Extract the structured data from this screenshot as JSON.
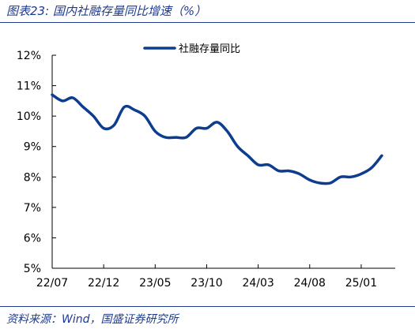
{
  "figure": {
    "title": "图表23:  国内社融存量同比增速（%）",
    "source": "资料来源：Wind，国盛证券研究所"
  },
  "colors": {
    "accent": "#1f3a8f",
    "series": "#0d3d8f"
  },
  "chart_data": {
    "type": "line",
    "title": "",
    "xlabel": "",
    "ylabel": "",
    "ylim": [
      5,
      12
    ],
    "grid": false,
    "legend_position": "top-center",
    "y_ticks": [
      "5%",
      "6%",
      "7%",
      "8%",
      "9%",
      "10%",
      "11%",
      "12%"
    ],
    "x_ticks": [
      {
        "label": "22/07",
        "x": "2022-07"
      },
      {
        "label": "22/12",
        "x": "2022-12"
      },
      {
        "label": "23/05",
        "x": "2023-05"
      },
      {
        "label": "23/10",
        "x": "2023-10"
      },
      {
        "label": "24/03",
        "x": "2024-03"
      },
      {
        "label": "24/08",
        "x": "2024-08"
      },
      {
        "label": "25/01",
        "x": "2025-01"
      }
    ],
    "x": [
      "2022-07",
      "2022-08",
      "2022-09",
      "2022-10",
      "2022-11",
      "2022-12",
      "2023-01",
      "2023-02",
      "2023-03",
      "2023-04",
      "2023-05",
      "2023-06",
      "2023-07",
      "2023-08",
      "2023-09",
      "2023-10",
      "2023-11",
      "2023-12",
      "2024-01",
      "2024-02",
      "2024-03",
      "2024-04",
      "2024-05",
      "2024-06",
      "2024-07",
      "2024-08",
      "2024-09",
      "2024-10",
      "2024-11",
      "2024-12",
      "2025-01",
      "2025-02",
      "2025-03"
    ],
    "series": [
      {
        "name": "社融存量同比",
        "values": [
          10.7,
          10.5,
          10.6,
          10.3,
          10.0,
          9.6,
          9.7,
          10.3,
          10.2,
          10.0,
          9.5,
          9.3,
          9.3,
          9.3,
          9.6,
          9.6,
          9.8,
          9.5,
          9.0,
          8.7,
          8.4,
          8.4,
          8.2,
          8.2,
          8.1,
          7.9,
          7.8,
          7.8,
          8.0,
          8.0,
          8.1,
          8.3,
          8.7
        ]
      }
    ]
  }
}
